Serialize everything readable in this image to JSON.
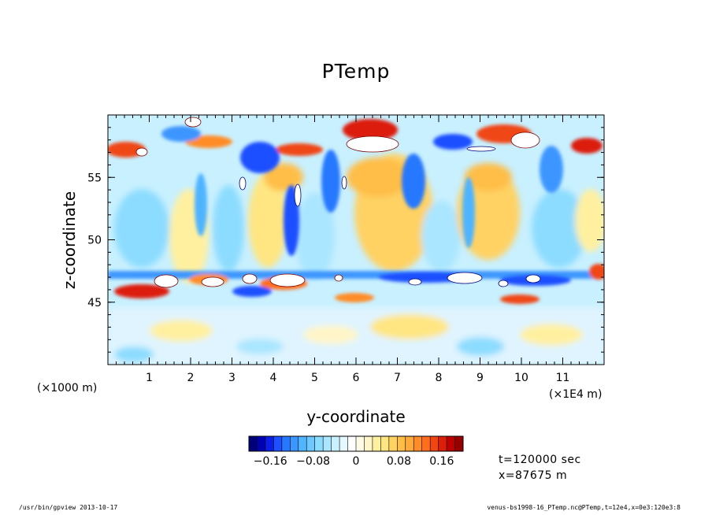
{
  "chart_data": {
    "type": "heatmap",
    "title": "PTemp",
    "xlabel": "y-coordinate",
    "ylabel": "z-coordinate",
    "x_unit_left": "(×1000 m)",
    "x_unit_right": "(×1E4 m)",
    "x_ticks": [
      "1",
      "2",
      "3",
      "4",
      "5",
      "6",
      "7",
      "8",
      "9",
      "10",
      "11"
    ],
    "x_tick_values": [
      1,
      2,
      3,
      4,
      5,
      6,
      7,
      8,
      9,
      10,
      11
    ],
    "xlim": [
      0,
      12
    ],
    "y_ticks": [
      "45",
      "50",
      "55"
    ],
    "y_tick_values": [
      45,
      50,
      55
    ],
    "ylim": [
      40,
      60
    ],
    "colorbar": {
      "ticks": [
        "−0.16",
        "−0.08",
        "0",
        "0.08",
        "0.16"
      ],
      "tick_values": [
        -0.16,
        -0.08,
        0,
        0.08,
        0.16
      ],
      "range": [
        -0.2,
        0.2
      ],
      "colors": [
        "#00007a",
        "#0000b4",
        "#0a1ee6",
        "#1e50ff",
        "#2878ff",
        "#3c96ff",
        "#50b4ff",
        "#6ec8ff",
        "#8cdcff",
        "#aae6ff",
        "#c8f0ff",
        "#e6f8ff",
        "#ffffff",
        "#fffae6",
        "#fff5c8",
        "#fff0a0",
        "#ffe682",
        "#ffd264",
        "#ffbe46",
        "#ffaa3c",
        "#ff8c28",
        "#ff6e1e",
        "#f04614",
        "#dc1e0a",
        "#be0000",
        "#960000"
      ]
    },
    "features": [
      {
        "kind": "warm band",
        "z": 57.5,
        "sign": "positive"
      },
      {
        "kind": "cold band",
        "z": 46.6,
        "sign": "negative"
      },
      {
        "kind": "warm region",
        "y_range": [
          5.8,
          7.5
        ],
        "z_range": [
          48,
          56
        ],
        "sign": "positive"
      }
    ]
  },
  "info": {
    "time": "t=120000 sec",
    "x": "x=87675 m"
  },
  "footer": {
    "left": "/usr/bin/gpview   2013-10-17",
    "right": "venus-bs1998-16_PTemp.nc@PTemp,t=12e4,x=0e3:120e3:8"
  }
}
